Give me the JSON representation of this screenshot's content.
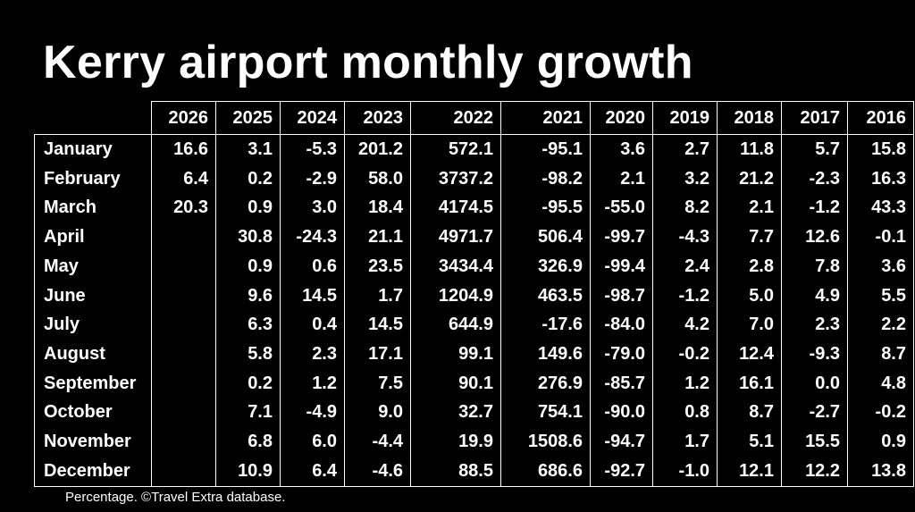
{
  "chart_data": {
    "type": "table",
    "title": "Kerry airport monthly growth",
    "columns": [
      "2026",
      "2025",
      "2024",
      "2023",
      "2022",
      "2021",
      "2020",
      "2019",
      "2018",
      "2017",
      "2016"
    ],
    "rows": [
      {
        "month": "January",
        "values": [
          "16.6",
          "3.1",
          "-5.3",
          "201.2",
          "572.1",
          "-95.1",
          "3.6",
          "2.7",
          "11.8",
          "5.7",
          "15.8"
        ]
      },
      {
        "month": "February",
        "values": [
          "6.4",
          "0.2",
          "-2.9",
          "58.0",
          "3737.2",
          "-98.2",
          "2.1",
          "3.2",
          "21.2",
          "-2.3",
          "16.3"
        ]
      },
      {
        "month": "March",
        "values": [
          "20.3",
          "0.9",
          "3.0",
          "18.4",
          "4174.5",
          "-95.5",
          "-55.0",
          "8.2",
          "2.1",
          "-1.2",
          "43.3"
        ]
      },
      {
        "month": "April",
        "values": [
          "",
          "30.8",
          "-24.3",
          "21.1",
          "4971.7",
          "506.4",
          "-99.7",
          "-4.3",
          "7.7",
          "12.6",
          "-0.1"
        ]
      },
      {
        "month": "May",
        "values": [
          "",
          "0.9",
          "0.6",
          "23.5",
          "3434.4",
          "326.9",
          "-99.4",
          "2.4",
          "2.8",
          "7.8",
          "3.6"
        ]
      },
      {
        "month": "June",
        "values": [
          "",
          "9.6",
          "14.5",
          "1.7",
          "1204.9",
          "463.5",
          "-98.7",
          "-1.2",
          "5.0",
          "4.9",
          "5.5"
        ]
      },
      {
        "month": "July",
        "values": [
          "",
          "6.3",
          "0.4",
          "14.5",
          "644.9",
          "-17.6",
          "-84.0",
          "4.2",
          "7.0",
          "2.3",
          "2.2"
        ]
      },
      {
        "month": "August",
        "values": [
          "",
          "5.8",
          "2.3",
          "17.1",
          "99.1",
          "149.6",
          "-79.0",
          "-0.2",
          "12.4",
          "-9.3",
          "8.7"
        ]
      },
      {
        "month": "September",
        "values": [
          "",
          "0.2",
          "1.2",
          "7.5",
          "90.1",
          "276.9",
          "-85.7",
          "1.2",
          "16.1",
          "0.0",
          "4.8"
        ]
      },
      {
        "month": "October",
        "values": [
          "",
          "7.1",
          "-4.9",
          "9.0",
          "32.7",
          "754.1",
          "-90.0",
          "0.8",
          "8.7",
          "-2.7",
          "-0.2"
        ]
      },
      {
        "month": "November",
        "values": [
          "",
          "6.8",
          "6.0",
          "-4.4",
          "19.9",
          "1508.6",
          "-94.7",
          "1.7",
          "5.1",
          "15.5",
          "0.9"
        ]
      },
      {
        "month": "December",
        "values": [
          "",
          "10.9",
          "6.4",
          "-4.6",
          "88.5",
          "686.6",
          "-92.7",
          "-1.0",
          "12.1",
          "12.2",
          "13.8"
        ]
      }
    ],
    "footnote": "Percentage. ©Travel Extra database."
  },
  "colors": {
    "background": "#000000",
    "text": "#ffffff",
    "grid": "#ffffff"
  }
}
